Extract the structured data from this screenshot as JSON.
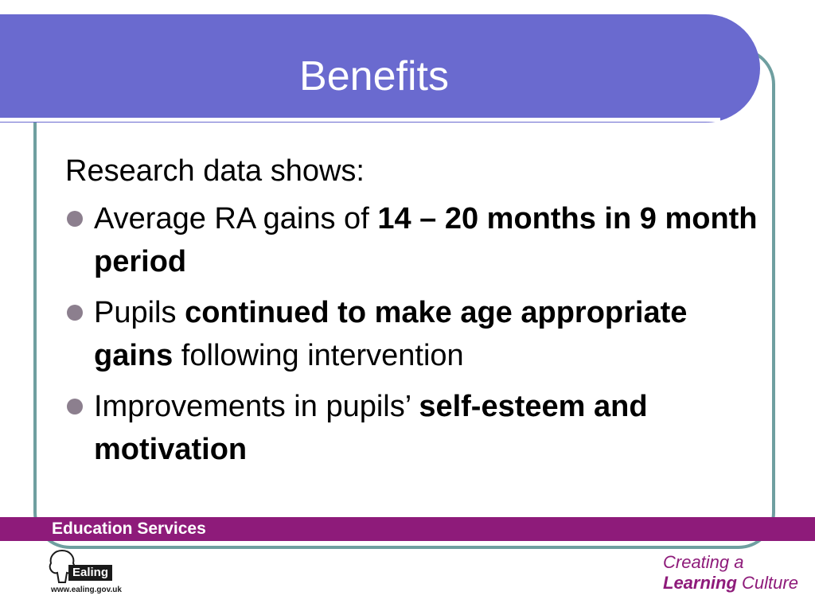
{
  "slide": {
    "title": "Benefits",
    "intro": "Research data shows:",
    "bullets": [
      {
        "pre": "Average RA gains of ",
        "bold": "14 – 20 months in 9 month period",
        "post": ""
      },
      {
        "pre": "Pupils ",
        "bold": "continued to make age appropriate gains",
        "post": " following intervention"
      },
      {
        "pre": "Improvements in pupils’ ",
        "bold": "self-esteem and motivation",
        "post": ""
      }
    ]
  },
  "footer": {
    "label": "Education Services",
    "logo_word": "Ealing",
    "logo_url": "www.ealing.gov.uk",
    "tagline_line1": "Creating a",
    "tagline_bold": "Learning",
    "tagline_rest": "Culture"
  },
  "colors": {
    "title_bar": "#6a6acf",
    "frame": "#6f9fa0",
    "footer_strip": "#8e1b7a",
    "bullet": "#8c7f8e"
  }
}
